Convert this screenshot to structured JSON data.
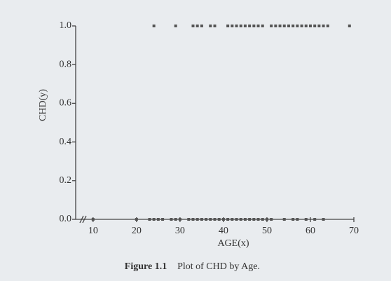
{
  "chart_data": {
    "type": "scatter",
    "figure_label": "Figure 1.1",
    "title": "Plot of CHD by Age.",
    "x_label": "AGE(x)",
    "y_label": "CHD(y)",
    "color": "#555555",
    "series": [
      {
        "x": [
          24,
          29,
          33,
          34,
          35,
          37,
          38,
          41,
          42,
          43,
          44,
          45,
          46,
          47,
          48,
          49,
          51,
          52,
          53,
          54,
          55,
          56,
          57,
          58,
          59,
          60,
          61,
          62,
          63,
          64,
          69
        ],
        "values": [
          1,
          1,
          1,
          1,
          1,
          1,
          1,
          1,
          1,
          1,
          1,
          1,
          1,
          1,
          1,
          1,
          1,
          1,
          1,
          1,
          1,
          1,
          1,
          1,
          1,
          1,
          1,
          1,
          1,
          1,
          1
        ]
      },
      {
        "x": [
          10,
          20,
          23,
          24,
          25,
          26,
          28,
          29,
          30,
          32,
          33,
          34,
          35,
          36,
          37,
          38,
          39,
          40,
          41,
          42,
          43,
          44,
          45,
          46,
          47,
          48,
          49,
          50,
          51,
          54,
          56,
          57,
          59,
          61,
          63
        ],
        "values": [
          0,
          0,
          0,
          0,
          0,
          0,
          0,
          0,
          0,
          0,
          0,
          0,
          0,
          0,
          0,
          0,
          0,
          0,
          0,
          0,
          0,
          0,
          0,
          0,
          0,
          0,
          0,
          0,
          0,
          0,
          0,
          0,
          0,
          0,
          0
        ]
      }
    ],
    "xlim": [
      6,
      70
    ],
    "xticks": [
      10,
      20,
      30,
      40,
      50,
      60,
      70
    ],
    "ylim": [
      0,
      1
    ],
    "yticks": [
      {
        "value": 0,
        "label": "0.0"
      },
      {
        "value": 0.2,
        "label": "0.2"
      },
      {
        "value": 0.4,
        "label": "0.4"
      },
      {
        "value": 0.6,
        "label": "0.6"
      },
      {
        "value": 0.8,
        "label": "0.8"
      },
      {
        "value": 1,
        "label": "1.0"
      }
    ]
  }
}
